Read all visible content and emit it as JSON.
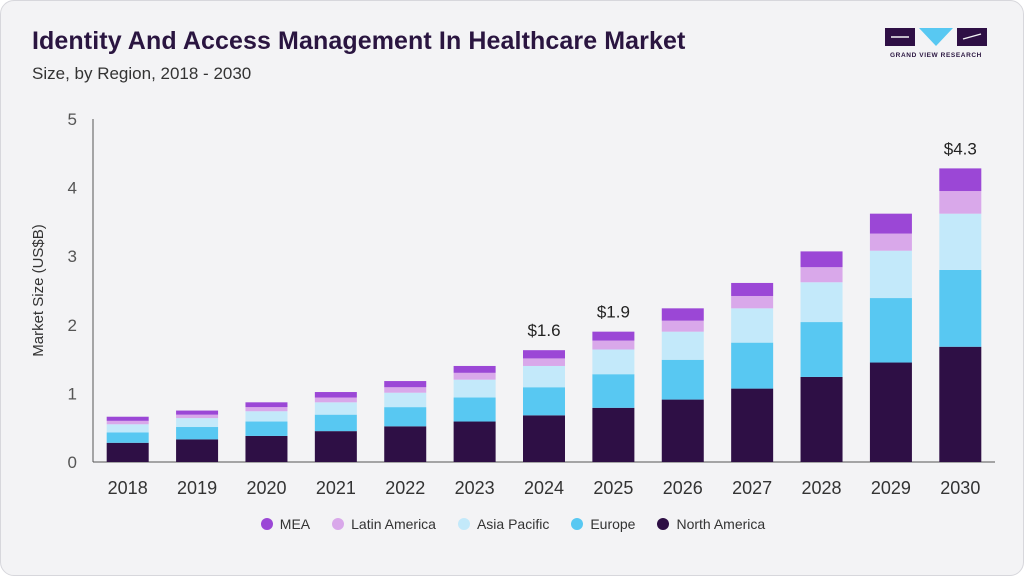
{
  "header": {
    "title": "Identity And Access Management In Healthcare Market",
    "subtitle": "Size, by Region, 2018 - 2030",
    "logo_text": "GRAND VIEW RESEARCH"
  },
  "colors": {
    "north_america": "#2e0f45",
    "europe": "#58c8f2",
    "asia_pacific": "#c3e9fa",
    "latin_america": "#d9a8ea",
    "mea": "#9b47d6",
    "axis": "#555555",
    "text": "#333333"
  },
  "chart_data": {
    "type": "bar",
    "stacked": true,
    "title": "Identity And Access Management In Healthcare Market",
    "subtitle": "Size, by Region, 2018 - 2030",
    "xlabel": "",
    "ylabel": "Market Size (US$B)",
    "ylim": [
      0,
      5
    ],
    "yticks": [
      0,
      1,
      2,
      3,
      4,
      5
    ],
    "grid": false,
    "legend_position": "bottom",
    "categories": [
      "2018",
      "2019",
      "2020",
      "2021",
      "2022",
      "2023",
      "2024",
      "2025",
      "2026",
      "2027",
      "2028",
      "2029",
      "2030"
    ],
    "series": [
      {
        "name": "North America",
        "color": "#2e0f45",
        "values": [
          0.28,
          0.33,
          0.38,
          0.45,
          0.52,
          0.59,
          0.68,
          0.79,
          0.91,
          1.07,
          1.24,
          1.45,
          1.68
        ]
      },
      {
        "name": "Europe",
        "color": "#58c8f2",
        "values": [
          0.15,
          0.18,
          0.21,
          0.24,
          0.28,
          0.35,
          0.41,
          0.49,
          0.58,
          0.67,
          0.8,
          0.94,
          1.12
        ]
      },
      {
        "name": "Asia Pacific",
        "color": "#c3e9fa",
        "values": [
          0.12,
          0.13,
          0.15,
          0.18,
          0.21,
          0.26,
          0.31,
          0.36,
          0.41,
          0.5,
          0.58,
          0.69,
          0.82
        ]
      },
      {
        "name": "Latin America",
        "color": "#d9a8ea",
        "values": [
          0.05,
          0.05,
          0.06,
          0.07,
          0.08,
          0.1,
          0.11,
          0.13,
          0.16,
          0.18,
          0.22,
          0.25,
          0.33
        ]
      },
      {
        "name": "MEA",
        "color": "#9b47d6",
        "values": [
          0.06,
          0.06,
          0.07,
          0.08,
          0.09,
          0.1,
          0.12,
          0.13,
          0.18,
          0.19,
          0.23,
          0.29,
          0.33
        ]
      }
    ],
    "annotations": [
      {
        "category": "2024",
        "text": "$1.6"
      },
      {
        "category": "2025",
        "text": "$1.9"
      },
      {
        "category": "2030",
        "text": "$4.3"
      }
    ]
  },
  "legend": {
    "order": [
      "MEA",
      "Latin America",
      "Asia Pacific",
      "Europe",
      "North America"
    ]
  }
}
